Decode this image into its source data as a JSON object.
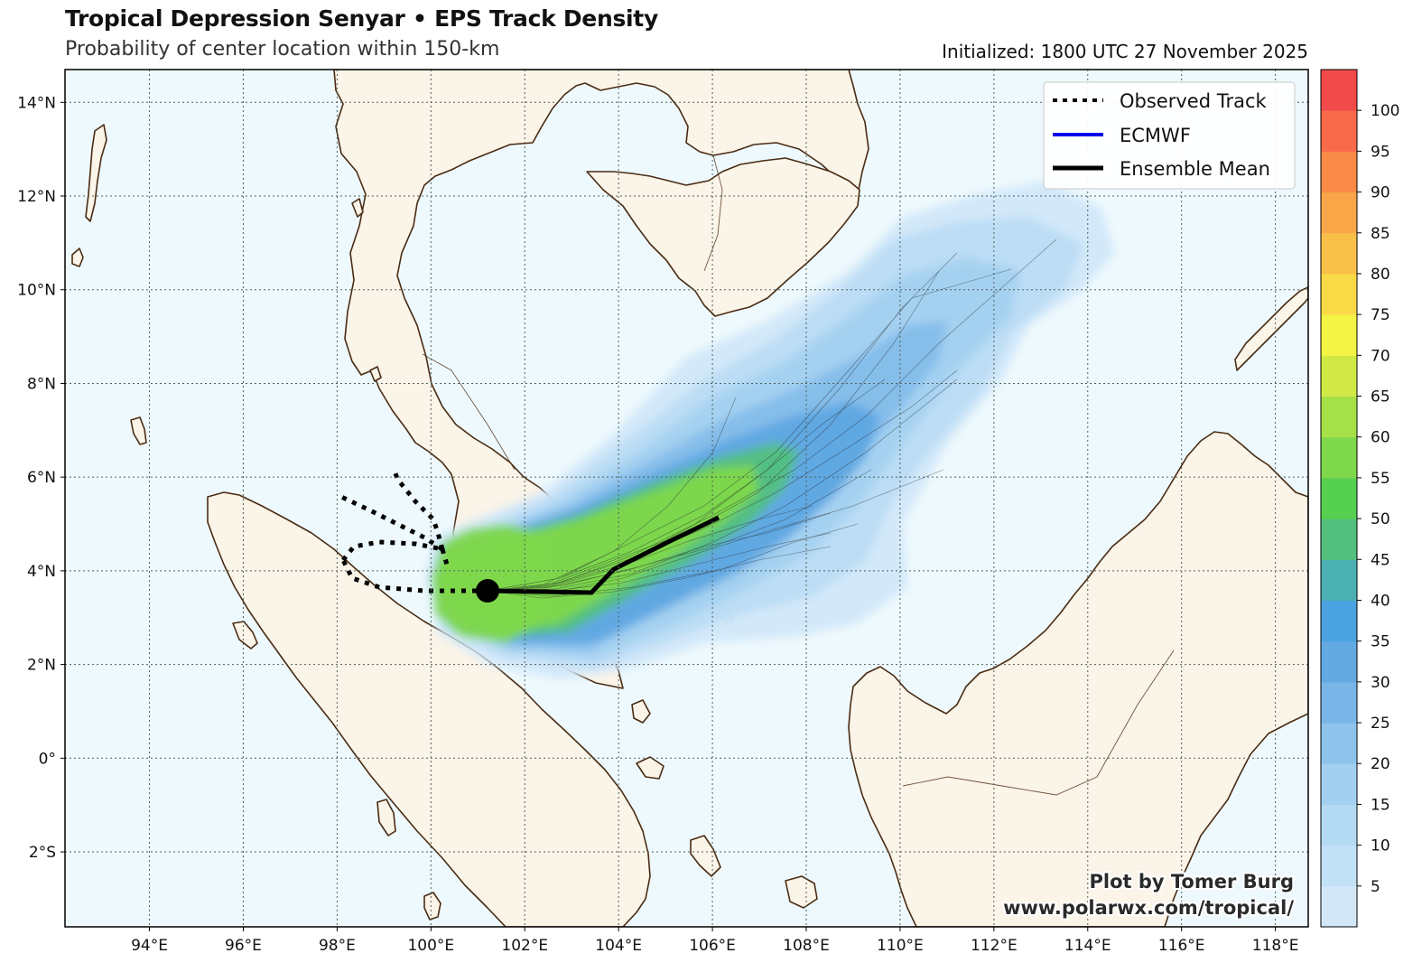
{
  "header": {
    "title": "Tropical Depression Senyar • EPS Track Density",
    "subtitle": "Probability of center location within 150-km",
    "initialized": "Initialized: 1800 UTC 27 November 2025"
  },
  "map": {
    "lon_range": [
      92.2,
      118.7
    ],
    "lat_range": [
      -3.6,
      14.7
    ],
    "lon_ticks": [
      "94°E",
      "96°E",
      "98°E",
      "100°E",
      "102°E",
      "104°E",
      "106°E",
      "108°E",
      "110°E",
      "112°E",
      "114°E",
      "116°E",
      "118°E"
    ],
    "lat_ticks": [
      "14°N",
      "12°N",
      "10°N",
      "8°N",
      "6°N",
      "4°N",
      "2°N",
      "0°",
      "2°S"
    ],
    "colors": {
      "ocean": "#eef9fd",
      "land": "#fbf4e8",
      "coast": "#4a2c14",
      "grid": "#5a6a66"
    }
  },
  "legend": {
    "items": [
      {
        "label": "Observed Track",
        "color": "#000000",
        "style": "dotted"
      },
      {
        "label": "ECMWF",
        "color": "#0000ee",
        "style": "solid"
      },
      {
        "label": "Ensemble Mean",
        "color": "#000000",
        "style": "solid-thick"
      }
    ]
  },
  "credit": {
    "line1": "Plot by Tomer Burg",
    "line2": "www.polarwx.com/tropical/"
  },
  "colorbar": {
    "ticks": [
      "5",
      "10",
      "15",
      "20",
      "25",
      "30",
      "35",
      "40",
      "45",
      "50",
      "55",
      "60",
      "65",
      "70",
      "75",
      "80",
      "85",
      "90",
      "95",
      "100"
    ],
    "colors": [
      "#d2e8f9",
      "#c3e1f6",
      "#b3d9f3",
      "#a3d0f0",
      "#8ec3ec",
      "#79b6e7",
      "#63a9e2",
      "#4ba2e0",
      "#4bb0b2",
      "#52bf7e",
      "#56d050",
      "#7fd84c",
      "#a6e048",
      "#d0e944",
      "#f4f444",
      "#f9da46",
      "#f9c048",
      "#f9a648",
      "#f98a48",
      "#f96a4a",
      "#f24a4a"
    ]
  },
  "storm": {
    "current_position": {
      "lon": 101.2,
      "lat": 3.6
    }
  }
}
